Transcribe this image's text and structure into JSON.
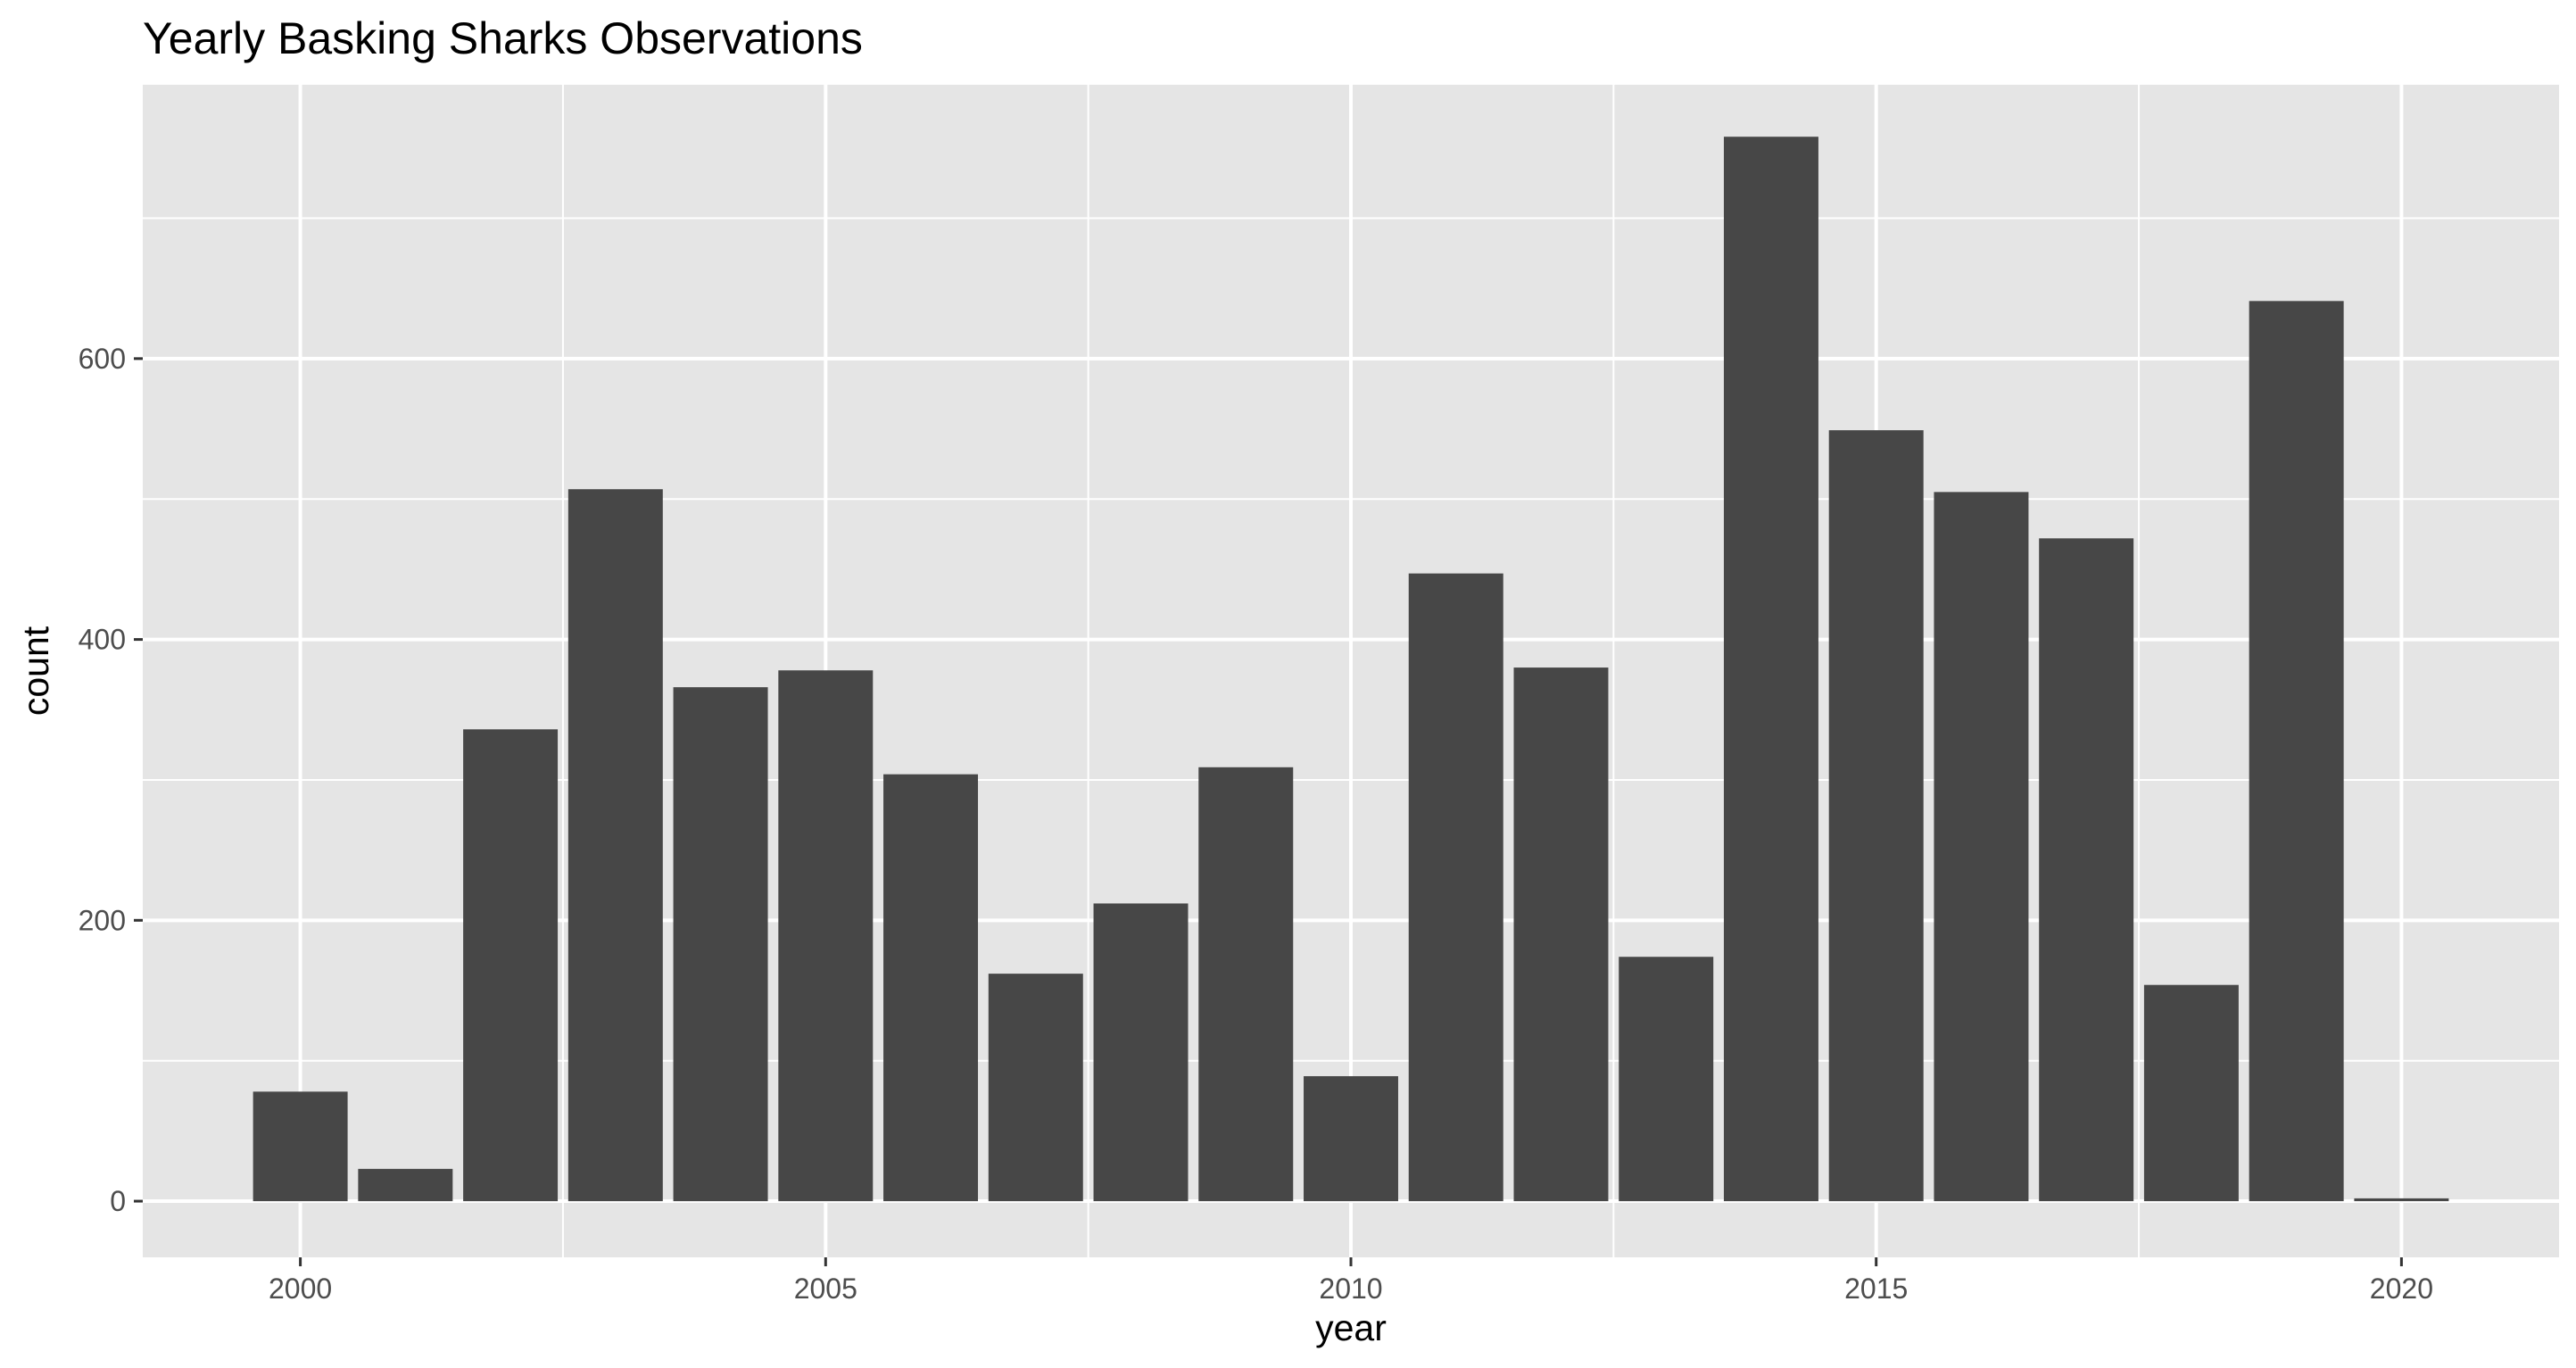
{
  "chart_data": {
    "type": "bar",
    "title": "Yearly Basking Sharks Observations",
    "xlabel": "year",
    "ylabel": "count",
    "x": [
      2000,
      2001,
      2002,
      2003,
      2004,
      2005,
      2006,
      2007,
      2008,
      2009,
      2010,
      2011,
      2012,
      2013,
      2014,
      2015,
      2016,
      2017,
      2018,
      2019,
      2020
    ],
    "values": [
      78,
      23,
      336,
      507,
      366,
      378,
      304,
      162,
      212,
      309,
      89,
      447,
      380,
      174,
      758,
      549,
      505,
      472,
      154,
      641,
      2
    ],
    "xlim": [
      1998.5,
      2021.5
    ],
    "ylim": [
      -40.0,
      795.0
    ],
    "x_ticks": [
      2000,
      2005,
      2010,
      2015,
      2020
    ],
    "x_tick_labels": [
      "2000",
      "2005",
      "2010",
      "2015",
      "2020"
    ],
    "y_ticks": [
      0,
      200,
      400,
      600
    ],
    "y_tick_labels": [
      "0",
      "200",
      "400",
      "600"
    ],
    "grid": true,
    "legend": "none",
    "colors": {
      "panel_background": "#e5e5e5",
      "grid_major": "#ffffff",
      "bar_fill": "#474747",
      "tick_text": "#4d4d4d",
      "tick_mark": "#333333",
      "title_text": "#000000"
    }
  }
}
